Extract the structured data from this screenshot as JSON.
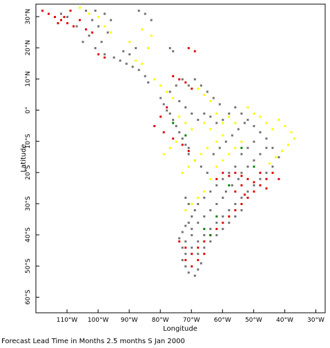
{
  "chart_data": {
    "type": "scatter",
    "xlabel": "Longitude",
    "ylabel": "Latitude",
    "xlim": [
      -120,
      -27
    ],
    "ylim": [
      -65,
      34
    ],
    "x_ticks": [
      {
        "value": -110,
        "label": "110°W"
      },
      {
        "value": -100,
        "label": "100°W"
      },
      {
        "value": -90,
        "label": "90°W"
      },
      {
        "value": -80,
        "label": "80°W"
      },
      {
        "value": -70,
        "label": "70°W"
      },
      {
        "value": -60,
        "label": "60°W"
      },
      {
        "value": -50,
        "label": "50°W"
      },
      {
        "value": -40,
        "label": "40°W"
      },
      {
        "value": -30,
        "label": "30°W"
      }
    ],
    "y_ticks": [
      {
        "value": 30,
        "label": "30°N"
      },
      {
        "value": 20,
        "label": "20°N"
      },
      {
        "value": 10,
        "label": "10°N"
      },
      {
        "value": 0,
        "label": "0°"
      },
      {
        "value": -10,
        "label": "10°S"
      },
      {
        "value": -20,
        "label": "20°S"
      },
      {
        "value": -30,
        "label": "30°S"
      },
      {
        "value": -40,
        "label": "40°S"
      },
      {
        "value": -50,
        "label": "50°S"
      },
      {
        "value": -60,
        "label": "60°S"
      }
    ],
    "grid": false,
    "categories": [
      {
        "key": "gray",
        "color": "#707070"
      },
      {
        "key": "yellow",
        "color": "#ffff00"
      },
      {
        "key": "red",
        "color": "#e00000"
      },
      {
        "key": "green",
        "color": "#008000"
      }
    ],
    "points": {
      "gray": [
        [
          -104,
          32
        ],
        [
          -101,
          32
        ],
        [
          -98,
          31
        ],
        [
          -96,
          29
        ],
        [
          -102,
          29
        ],
        [
          -100,
          27
        ],
        [
          -97,
          25
        ],
        [
          -99,
          22
        ],
        [
          -101,
          20
        ],
        [
          -98,
          18
        ],
        [
          -95,
          17
        ],
        [
          -93,
          16
        ],
        [
          -91,
          15
        ],
        [
          -89,
          14
        ],
        [
          -87,
          13
        ],
        [
          -85,
          11
        ],
        [
          -84,
          9
        ],
        [
          -90,
          18
        ],
        [
          -88,
          20
        ],
        [
          -92,
          19
        ],
        [
          -103,
          24
        ],
        [
          -105,
          22
        ],
        [
          -107,
          27
        ],
        [
          -110,
          30
        ],
        [
          -112,
          31
        ],
        [
          -87,
          32
        ],
        [
          -85,
          31
        ],
        [
          -83,
          29
        ],
        [
          -77,
          20
        ],
        [
          -76,
          19
        ],
        [
          -80,
          4
        ],
        [
          -79,
          2
        ],
        [
          -78,
          0
        ],
        [
          -77,
          -1
        ],
        [
          -76,
          -3
        ],
        [
          -75,
          -5
        ],
        [
          -74,
          -7
        ],
        [
          -73,
          -9
        ],
        [
          -72,
          -11
        ],
        [
          -71,
          -12
        ],
        [
          -74,
          3
        ],
        [
          -72,
          1
        ],
        [
          -70,
          -1
        ],
        [
          -68,
          -3
        ],
        [
          -66,
          -1
        ],
        [
          -64,
          -2
        ],
        [
          -62,
          -4
        ],
        [
          -60,
          -3
        ],
        [
          -58,
          -1
        ],
        [
          -56,
          1
        ],
        [
          -54,
          -1
        ],
        [
          -52,
          -3
        ],
        [
          -50,
          -5
        ],
        [
          -48,
          -7
        ],
        [
          -46,
          -9
        ],
        [
          -44,
          -12
        ],
        [
          -42,
          -15
        ],
        [
          -44,
          -18
        ],
        [
          -46,
          -20
        ],
        [
          -48,
          -22
        ],
        [
          -50,
          -24
        ],
        [
          -52,
          -26
        ],
        [
          -54,
          -28
        ],
        [
          -56,
          -30
        ],
        [
          -58,
          -32
        ],
        [
          -60,
          -34
        ],
        [
          -62,
          -36
        ],
        [
          -64,
          -38
        ],
        [
          -66,
          -40
        ],
        [
          -68,
          -42
        ],
        [
          -70,
          -44
        ],
        [
          -72,
          -46
        ],
        [
          -73,
          -48
        ],
        [
          -72,
          -50
        ],
        [
          -71,
          -52
        ],
        [
          -69,
          -53
        ],
        [
          -68,
          -51
        ],
        [
          -67,
          -49
        ],
        [
          -70,
          -38
        ],
        [
          -71,
          -36
        ],
        [
          -70,
          -34
        ],
        [
          -69,
          -32
        ],
        [
          -68,
          -30
        ],
        [
          -66,
          -28
        ],
        [
          -64,
          -26
        ],
        [
          -62,
          -24
        ],
        [
          -60,
          -22
        ],
        [
          -58,
          -20
        ],
        [
          -56,
          -18
        ],
        [
          -65,
          -20
        ],
        [
          -67,
          -18
        ],
        [
          -69,
          -16
        ],
        [
          -71,
          -14
        ],
        [
          -63,
          -14
        ],
        [
          -61,
          -12
        ],
        [
          -59,
          -10
        ],
        [
          -57,
          -8
        ],
        [
          -55,
          -6
        ],
        [
          -53,
          -4
        ],
        [
          -65,
          6
        ],
        [
          -63,
          4
        ],
        [
          -61,
          2
        ],
        [
          -67,
          8
        ],
        [
          -69,
          10
        ],
        [
          -71,
          8
        ],
        [
          -73,
          10
        ],
        [
          -75,
          8
        ],
        [
          -77,
          6
        ],
        [
          -70,
          -40
        ],
        [
          -72,
          -42
        ],
        [
          -73,
          -44
        ],
        [
          -68,
          -46
        ],
        [
          -66,
          -44
        ],
        [
          -64,
          -42
        ],
        [
          -62,
          -40
        ],
        [
          -60,
          -38
        ],
        [
          -58,
          -36
        ],
        [
          -56,
          -34
        ],
        [
          -54,
          -32
        ],
        [
          -72,
          -37
        ],
        [
          -73,
          -39
        ],
        [
          -74,
          -41
        ],
        [
          -71,
          -30
        ],
        [
          -72,
          -28
        ],
        [
          -60,
          -28
        ],
        [
          -62,
          -30
        ],
        [
          -64,
          -32
        ],
        [
          -66,
          -34
        ],
        [
          -68,
          -36
        ],
        [
          -55,
          -22
        ],
        [
          -57,
          -24
        ],
        [
          -59,
          -26
        ],
        [
          -50,
          -16
        ],
        [
          -52,
          -18
        ],
        [
          -54,
          -20
        ],
        [
          -48,
          -14
        ],
        [
          -46,
          -12
        ],
        [
          -50,
          -10
        ],
        [
          -52,
          -12
        ],
        [
          -54,
          -14
        ]
      ],
      "yellow": [
        [
          -106,
          33
        ],
        [
          -103,
          31
        ],
        [
          -100,
          30
        ],
        [
          -98,
          27
        ],
        [
          -96,
          25
        ],
        [
          -86,
          26
        ],
        [
          -83,
          24
        ],
        [
          -88,
          16
        ],
        [
          -86,
          15
        ],
        [
          -82,
          10
        ],
        [
          -80,
          8
        ],
        [
          -78,
          6
        ],
        [
          -76,
          4
        ],
        [
          -74,
          -2
        ],
        [
          -72,
          -4
        ],
        [
          -70,
          -6
        ],
        [
          -75,
          -10
        ],
        [
          -77,
          -12
        ],
        [
          -79,
          -14
        ],
        [
          -66,
          -4
        ],
        [
          -64,
          -6
        ],
        [
          -58,
          -2
        ],
        [
          -56,
          -4
        ],
        [
          -52,
          1
        ],
        [
          -50,
          -1
        ],
        [
          -48,
          -2
        ],
        [
          -46,
          -4
        ],
        [
          -44,
          -6
        ],
        [
          -42,
          -3
        ],
        [
          -40,
          -5
        ],
        [
          -38,
          -7
        ],
        [
          -37,
          -9
        ],
        [
          -39,
          -11
        ],
        [
          -41,
          -13
        ],
        [
          -43,
          -15
        ],
        [
          -45,
          -17
        ],
        [
          -60,
          -16
        ],
        [
          -62,
          -18
        ],
        [
          -64,
          -22
        ],
        [
          -66,
          -26
        ],
        [
          -68,
          -28
        ],
        [
          -70,
          -30
        ],
        [
          -72,
          -32
        ],
        [
          -60,
          -8
        ],
        [
          -62,
          -10
        ],
        [
          -65,
          -12
        ],
        [
          -67,
          -14
        ],
        [
          -69,
          -16
        ],
        [
          -71,
          -18
        ],
        [
          -73,
          -20
        ],
        [
          -58,
          -14
        ],
        [
          -56,
          -12
        ],
        [
          -54,
          -10
        ],
        [
          -60,
          -4
        ],
        [
          -62,
          -1
        ],
        [
          -64,
          3
        ],
        [
          -66,
          5
        ],
        [
          -68,
          7
        ],
        [
          -84,
          20
        ],
        [
          -90,
          22
        ]
      ],
      "red": [
        [
          -118,
          32
        ],
        [
          -116,
          31
        ],
        [
          -114,
          30
        ],
        [
          -112,
          29
        ],
        [
          -110,
          28
        ],
        [
          -108,
          27
        ],
        [
          -106,
          29
        ],
        [
          -104,
          26
        ],
        [
          -102,
          25
        ],
        [
          -109,
          32
        ],
        [
          -111,
          30
        ],
        [
          -113,
          28
        ],
        [
          -100,
          18
        ],
        [
          -98,
          17
        ],
        [
          -76,
          11
        ],
        [
          -74,
          10
        ],
        [
          -72,
          9
        ],
        [
          -70,
          7
        ],
        [
          -78,
          1
        ],
        [
          -80,
          -2
        ],
        [
          -82,
          -5
        ],
        [
          -79,
          -7
        ],
        [
          -76,
          -9
        ],
        [
          -73,
          -11
        ],
        [
          -71,
          -13
        ],
        [
          -56,
          -20
        ],
        [
          -54,
          -21
        ],
        [
          -52,
          -22
        ],
        [
          -50,
          -23
        ],
        [
          -48,
          -24
        ],
        [
          -46,
          -22
        ],
        [
          -44,
          -20
        ],
        [
          -42,
          -22
        ],
        [
          -50,
          -26
        ],
        [
          -52,
          -28
        ],
        [
          -54,
          -30
        ],
        [
          -56,
          -32
        ],
        [
          -58,
          -34
        ],
        [
          -60,
          -36
        ],
        [
          -62,
          -38
        ],
        [
          -64,
          -40
        ],
        [
          -66,
          -42
        ],
        [
          -68,
          -44
        ],
        [
          -70,
          -46
        ],
        [
          -72,
          -48
        ],
        [
          -66,
          -46
        ],
        [
          -68,
          -48
        ],
        [
          -70,
          -50
        ],
        [
          -72,
          -44
        ],
        [
          -74,
          -42
        ],
        [
          -58,
          -21
        ],
        [
          -60,
          -20
        ],
        [
          -62,
          -22
        ],
        [
          -54,
          -24
        ],
        [
          -56,
          -26
        ],
        [
          -46,
          -25
        ],
        [
          -48,
          -20
        ],
        [
          -71,
          20
        ],
        [
          -69,
          19
        ],
        [
          -53,
          -27
        ]
      ],
      "green": [
        [
          -76,
          -4
        ],
        [
          -54,
          -12
        ],
        [
          -50,
          -18
        ],
        [
          -62,
          -34
        ],
        [
          -64,
          -40
        ],
        [
          -72,
          -8
        ],
        [
          -58,
          -24
        ],
        [
          -66,
          -38
        ]
      ]
    }
  },
  "caption": "Forecast Lead Time in Months 2.5 months S Jan 2000"
}
